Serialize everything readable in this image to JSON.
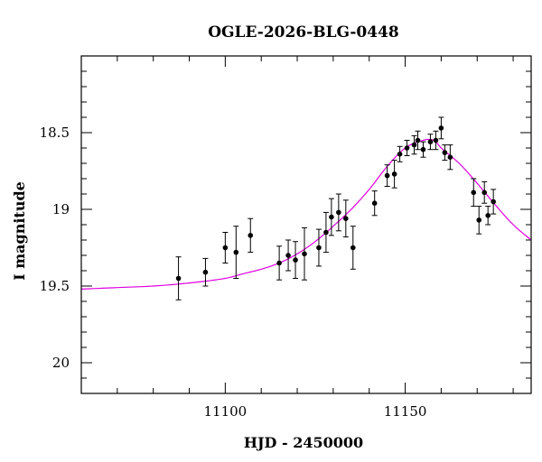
{
  "chart_data": {
    "type": "scatter",
    "title": "OGLE-2026-BLG-0448",
    "xlabel": "HJD - 2450000",
    "ylabel": "I magnitude",
    "xlim": [
      11060,
      11185
    ],
    "ylim": [
      20.2,
      18.0
    ],
    "y_inverted": true,
    "x_major_ticks": [
      11100,
      11150
    ],
    "x_minor_step": 10,
    "y_major_ticks": [
      18.5,
      19,
      19.5,
      20
    ],
    "y_minor_step": 0.1,
    "grid": false,
    "legend": "none",
    "colors": {
      "points": "#000000",
      "model": "#e000e0"
    },
    "series": [
      {
        "kind": "points_with_errorbars",
        "x": [
          11087,
          11094.5,
          11100,
          11103,
          11107,
          11115,
          11117.5,
          11119.5,
          11122,
          11126,
          11128,
          11129.5,
          11131.5,
          11133.5,
          11135.5,
          11141.5,
          11145,
          11147,
          11148.5,
          11150.5,
          11152.5,
          11153.5,
          11155,
          11157,
          11158.5,
          11160,
          11161,
          11162.5,
          11169,
          11170.5,
          11172,
          11173,
          11174.5
        ],
        "y": [
          19.45,
          19.41,
          19.25,
          19.28,
          19.17,
          19.35,
          19.3,
          19.33,
          19.29,
          19.25,
          19.15,
          19.05,
          19.02,
          19.06,
          19.25,
          18.96,
          18.78,
          18.77,
          18.64,
          18.6,
          18.58,
          18.55,
          18.61,
          18.56,
          18.55,
          18.47,
          18.63,
          18.66,
          18.89,
          19.07,
          18.89,
          19.04,
          18.95
        ],
        "yerr": [
          0.14,
          0.09,
          0.1,
          0.17,
          0.11,
          0.11,
          0.1,
          0.12,
          0.17,
          0.12,
          0.13,
          0.12,
          0.12,
          0.12,
          0.14,
          0.08,
          0.07,
          0.09,
          0.05,
          0.05,
          0.06,
          0.06,
          0.05,
          0.05,
          0.06,
          0.07,
          0.05,
          0.08,
          0.09,
          0.09,
          0.07,
          0.06,
          0.08
        ]
      },
      {
        "kind": "model_curve",
        "x": [
          11060,
          11070,
          11080,
          11090,
          11100,
          11105,
          11110,
          11115,
          11120,
          11125,
          11130,
          11135,
          11140,
          11145,
          11150,
          11155,
          11158,
          11160,
          11165,
          11170,
          11175,
          11180,
          11185
        ],
        "y": [
          19.52,
          19.51,
          19.5,
          19.48,
          19.45,
          19.42,
          19.39,
          19.35,
          19.29,
          19.21,
          19.11,
          19.0,
          18.87,
          18.72,
          18.6,
          18.55,
          18.55,
          18.6,
          18.7,
          18.83,
          18.97,
          19.1,
          19.2
        ]
      }
    ]
  }
}
